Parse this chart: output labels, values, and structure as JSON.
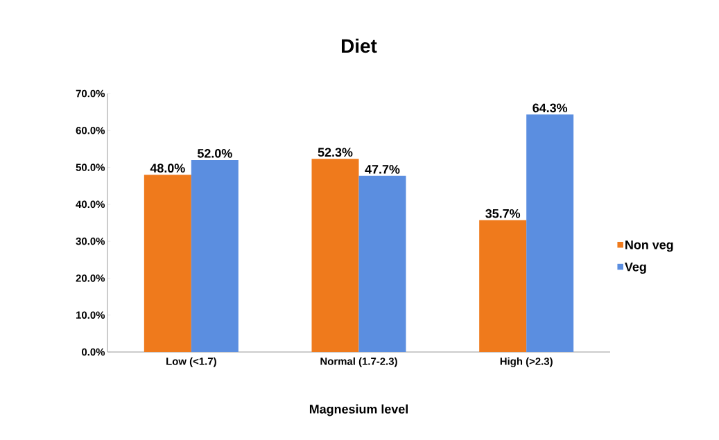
{
  "chart_data": {
    "type": "bar",
    "title": "Diet",
    "xlabel": "Magnesium level",
    "categories": [
      "Low (<1.7)",
      "Normal (1.7-2.3)",
      "High (>2.3)"
    ],
    "series": [
      {
        "name": "Non veg",
        "color": "#ef7a1c",
        "values": [
          48.0,
          52.3,
          35.7
        ],
        "value_labels": [
          "48.0%",
          "52.3%",
          "35.7%"
        ]
      },
      {
        "name": "Veg",
        "color": "#5b8ee0",
        "values": [
          52.0,
          47.7,
          64.3
        ],
        "value_labels": [
          "52.0%",
          "47.7%",
          "64.3%"
        ]
      }
    ],
    "ylim": [
      0,
      70
    ],
    "yticks": [
      {
        "value": 0,
        "label": "0.0%"
      },
      {
        "value": 10,
        "label": "10.0%"
      },
      {
        "value": 20,
        "label": "20.0%"
      },
      {
        "value": 30,
        "label": "30.0%"
      },
      {
        "value": 40,
        "label": "40.0%"
      },
      {
        "value": 50,
        "label": "50.0%"
      },
      {
        "value": 60,
        "label": "60.0%"
      },
      {
        "value": 70,
        "label": "70.0%"
      }
    ],
    "legend": "right",
    "grid": false
  }
}
